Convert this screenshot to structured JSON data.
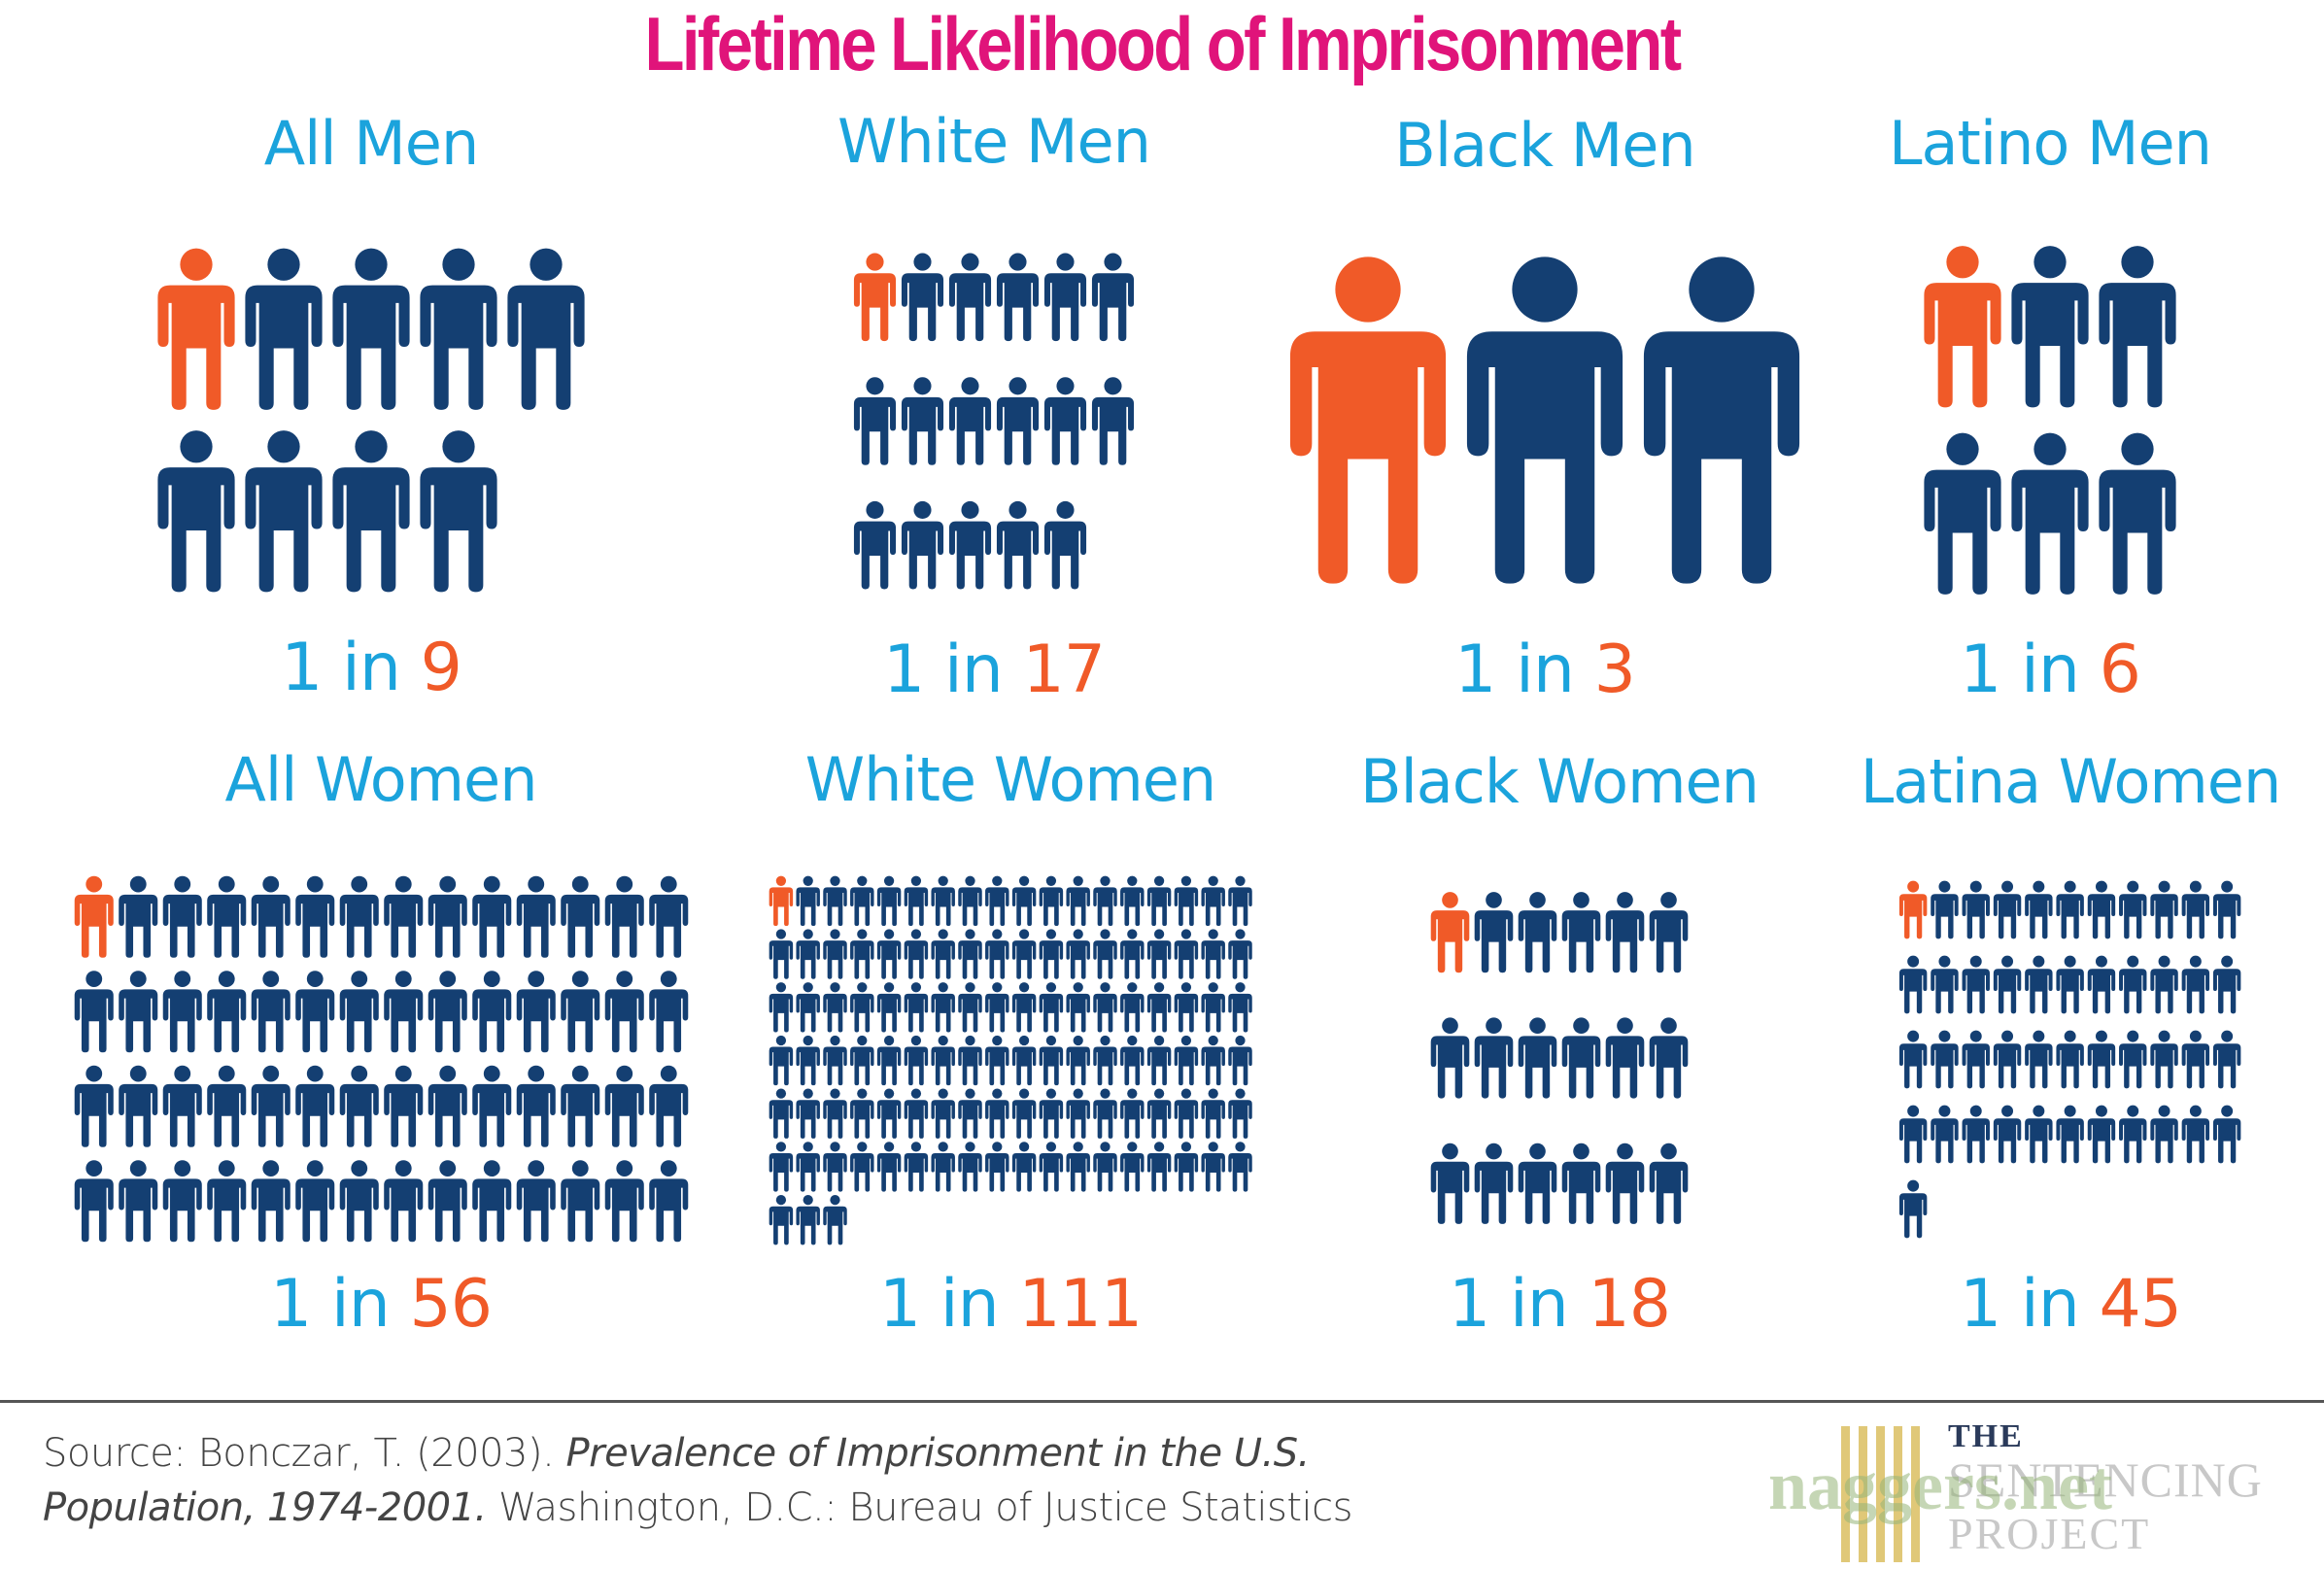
{
  "colors": {
    "title": "#e0147a",
    "label": "#1ba3dc",
    "highlight": "#f05a28",
    "figure": "#143f72",
    "rule": "#555555",
    "source": "#444444"
  },
  "chart_data": {
    "type": "pictogram",
    "title": "Lifetime Likelihood of Imprisonment",
    "icon": "person-icon",
    "panels": [
      {
        "label": "All Men",
        "ratio_prefix": "1 in ",
        "denominator": 9,
        "figures": 9
      },
      {
        "label": "White Men",
        "ratio_prefix": "1 in ",
        "denominator": 17,
        "figures": 17
      },
      {
        "label": "Black Men",
        "ratio_prefix": "1 in ",
        "denominator": 3,
        "figures": 3
      },
      {
        "label": "Latino Men",
        "ratio_prefix": "1 in ",
        "denominator": 6,
        "figures": 6
      },
      {
        "label": "All Women",
        "ratio_prefix": "1 in ",
        "denominator": 56,
        "figures": 56
      },
      {
        "label": "White Women",
        "ratio_prefix": "1 in ",
        "denominator": 111,
        "figures": 111
      },
      {
        "label": "Black Women",
        "ratio_prefix": "1 in ",
        "denominator": 18,
        "figures": 18
      },
      {
        "label": "Latina Women",
        "ratio_prefix": "1 in ",
        "denominator": 45,
        "figures": 45
      }
    ]
  },
  "source": {
    "prefix": "Source: Bonczar, T. (2003). ",
    "title_italic": "Prevalence of Imprisonment in the U.S. Population, 1974-2001.",
    "suffix": " Washington, D.C.: Bureau of Justice Statistics"
  },
  "logo": {
    "line1": "THE",
    "line2": "SENTENCING",
    "line3": "PROJECT"
  },
  "watermark": "naggers.net"
}
